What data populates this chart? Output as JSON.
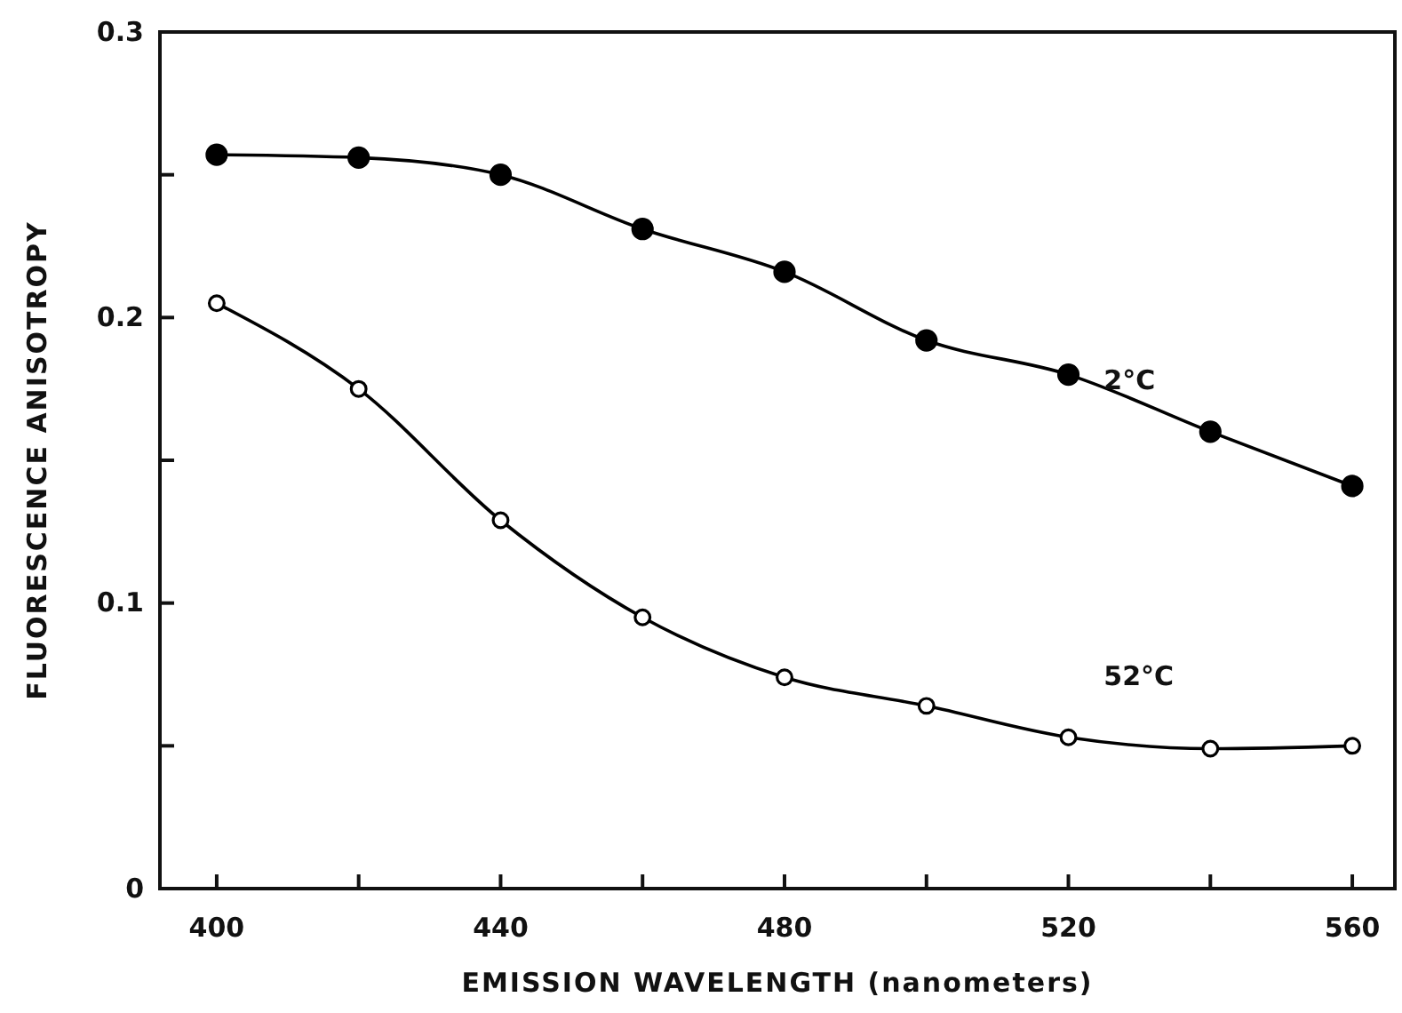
{
  "chart_data": {
    "type": "line",
    "xlabel": "EMISSION WAVELENGTH (nanometers)",
    "ylabel": "FLUORESCENCE ANISOTROPY",
    "x": [
      400,
      420,
      440,
      460,
      480,
      500,
      520,
      540,
      560
    ],
    "series": [
      {
        "name": "2°C",
        "color": "#000000",
        "values": [
          0.257,
          0.256,
          0.25,
          0.231,
          0.216,
          0.192,
          0.18,
          0.16,
          0.141
        ]
      },
      {
        "name": "52°C",
        "color": "#000000",
        "values": [
          0.205,
          0.175,
          0.129,
          0.095,
          0.074,
          0.064,
          0.053,
          0.049,
          0.05
        ]
      }
    ],
    "xlim": [
      392,
      566
    ],
    "ylim": [
      0,
      0.3
    ],
    "xticks": [
      400,
      {
        "value": 420,
        "label": null
      },
      440,
      {
        "value": 460,
        "label": null
      },
      480,
      {
        "value": 500,
        "label": null
      },
      520,
      {
        "value": 540,
        "label": null
      },
      560
    ],
    "yticks": [
      0,
      {
        "value": 0.05,
        "label": null
      },
      0.1,
      {
        "value": 0.15,
        "label": null
      },
      0.2,
      {
        "value": 0.25,
        "label": null
      },
      0.3
    ],
    "marker": "circle",
    "line_style": "solid",
    "grid": false
  }
}
